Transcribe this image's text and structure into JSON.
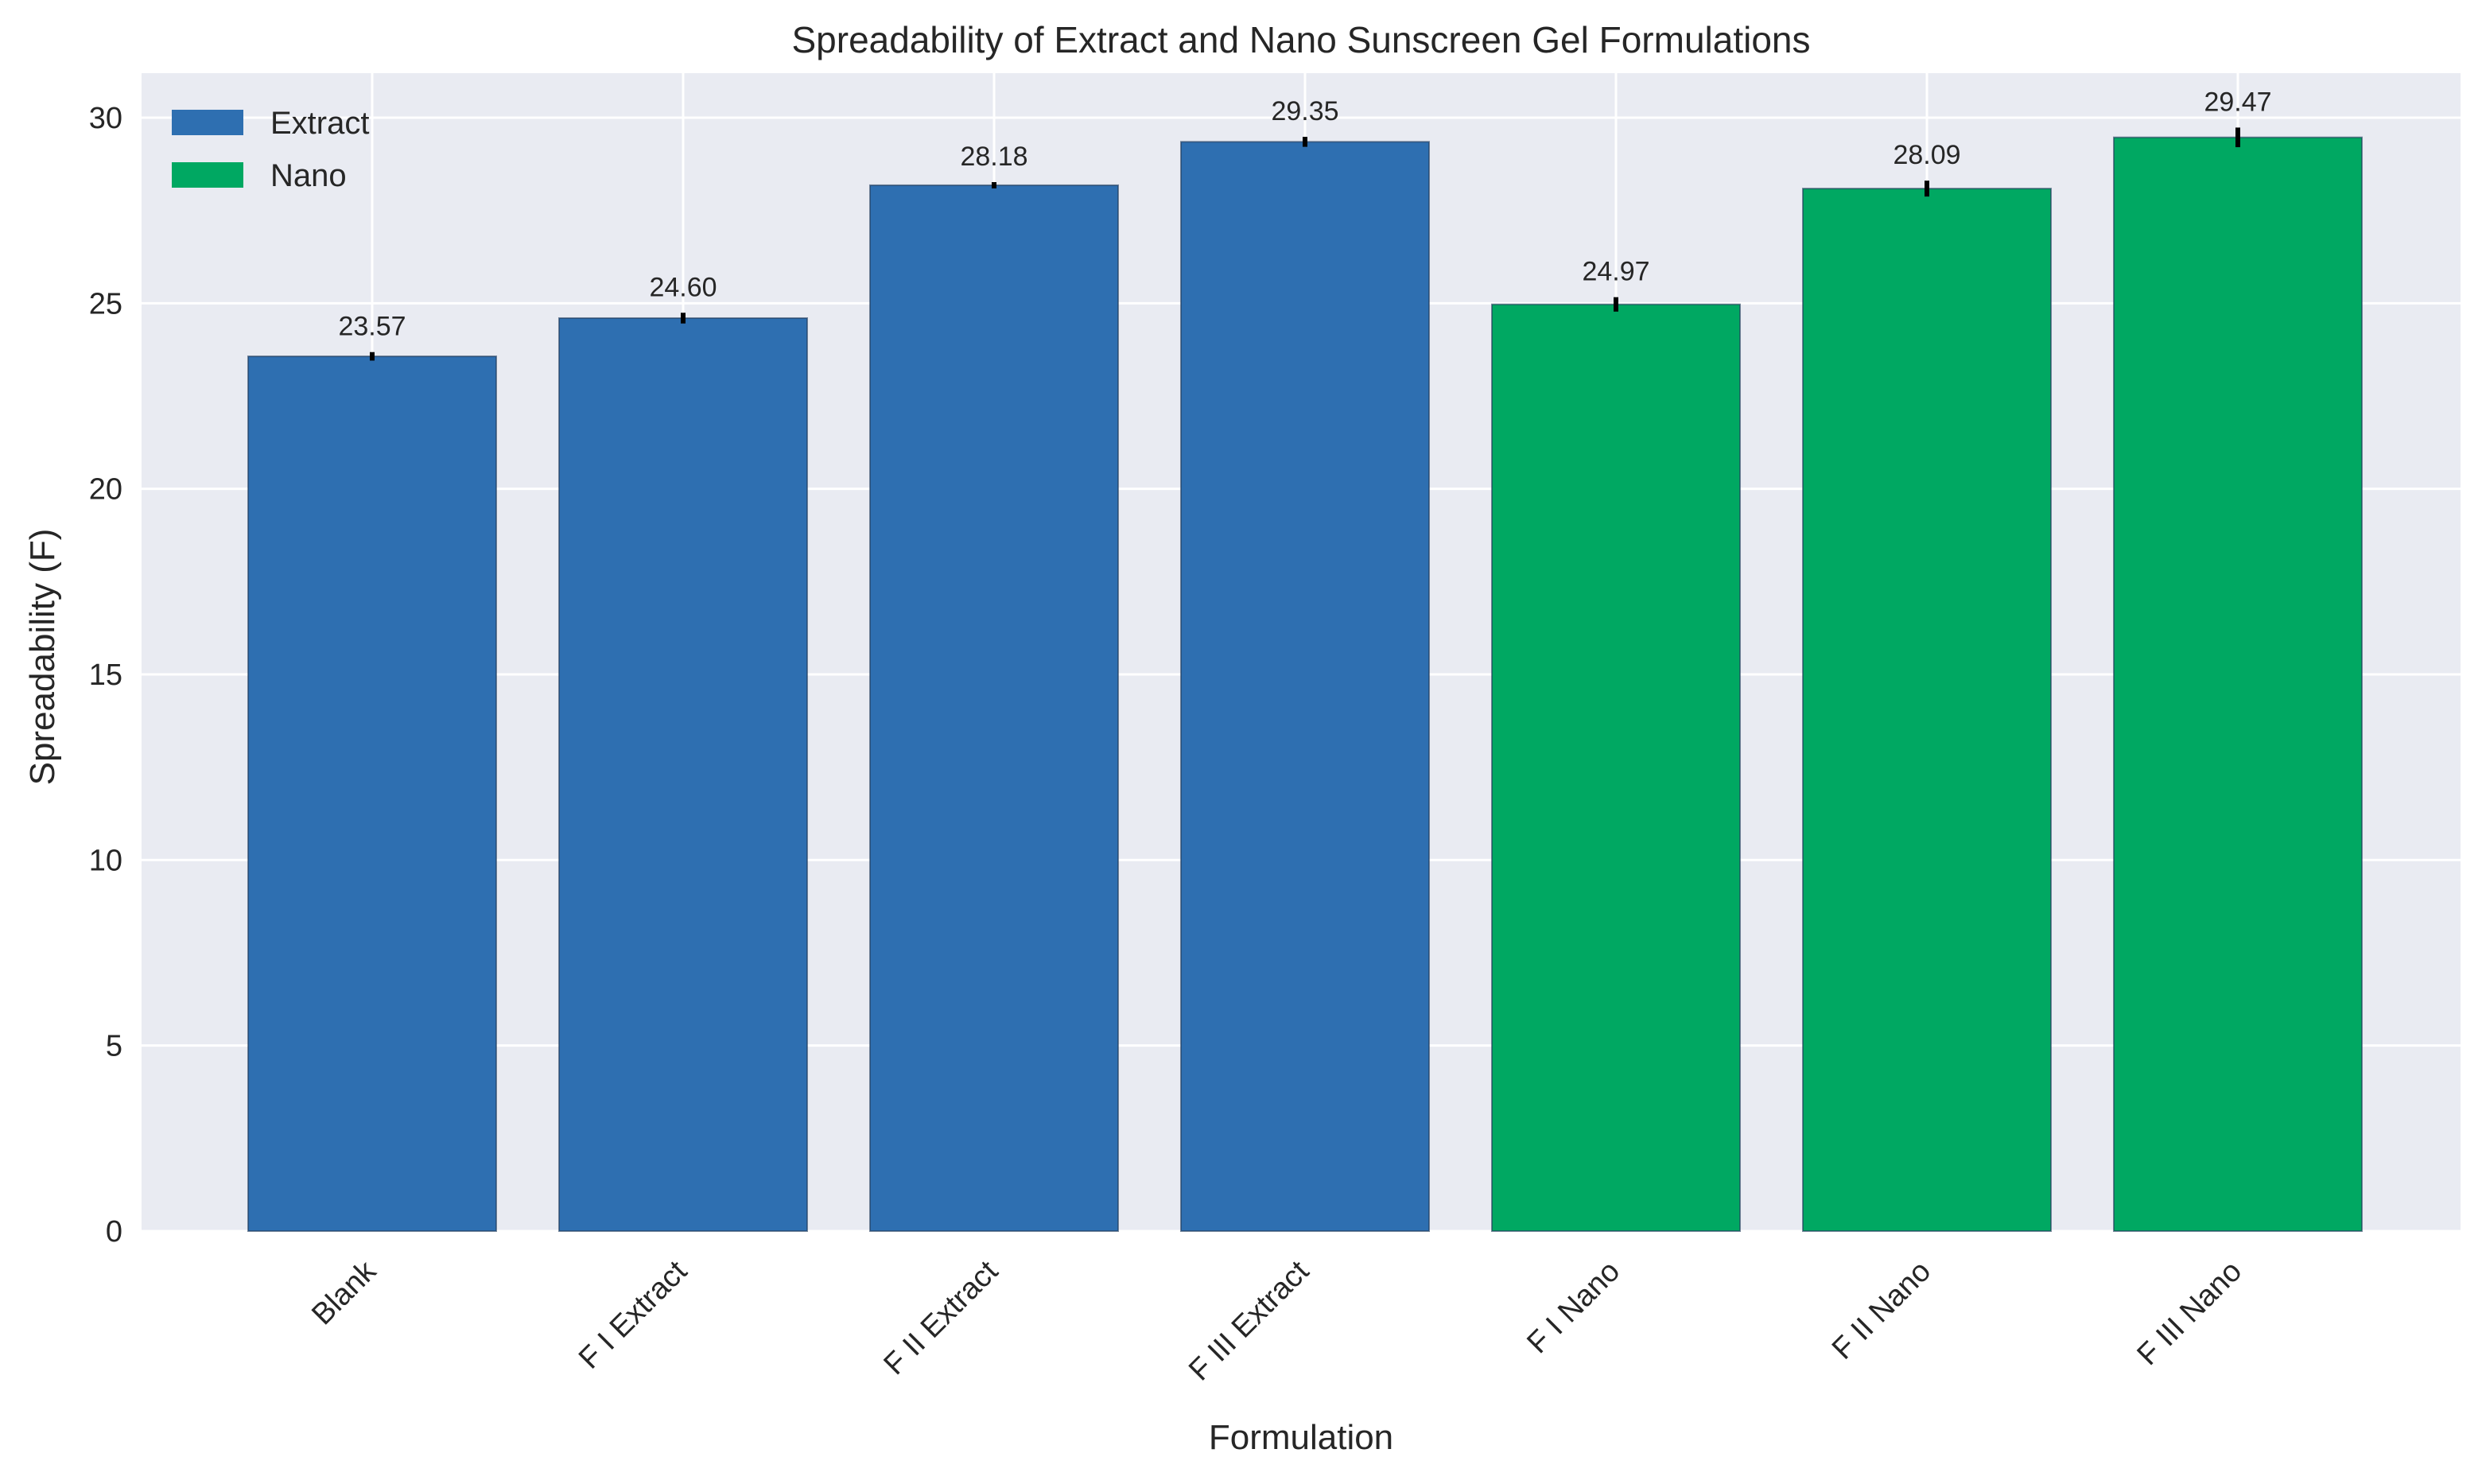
{
  "chart_data": {
    "type": "bar",
    "title": "Spreadability of Extract and Nano Sunscreen Gel Formulations",
    "xlabel": "Formulation",
    "ylabel": "Spreadability (F)",
    "ylim": [
      0,
      31.2
    ],
    "yticks": [
      0,
      5,
      10,
      15,
      20,
      25,
      30
    ],
    "grid": true,
    "legend_position": "top-left",
    "categories": [
      "Blank",
      "F I Extract",
      "F II Extract",
      "F III Extract",
      "F I Nano",
      "F II Nano",
      "F III Nano"
    ],
    "values": [
      23.57,
      24.6,
      28.18,
      29.35,
      24.97,
      28.09,
      29.47
    ],
    "value_labels": [
      "23.57",
      "24.60",
      "28.18",
      "29.35",
      "24.97",
      "28.09",
      "29.47"
    ],
    "errors": [
      0.05,
      0.08,
      0.02,
      0.07,
      0.13,
      0.15,
      0.2
    ],
    "groups": [
      "Extract",
      "Extract",
      "Extract",
      "Extract",
      "Nano",
      "Nano",
      "Nano"
    ],
    "series": [
      {
        "name": "Extract",
        "color": "#2e6fb1"
      },
      {
        "name": "Nano",
        "color": "#00a862"
      }
    ]
  },
  "colors": {
    "plot_background": "#e9ebf2",
    "grid": "#ffffff",
    "error_bar": "#000000"
  }
}
